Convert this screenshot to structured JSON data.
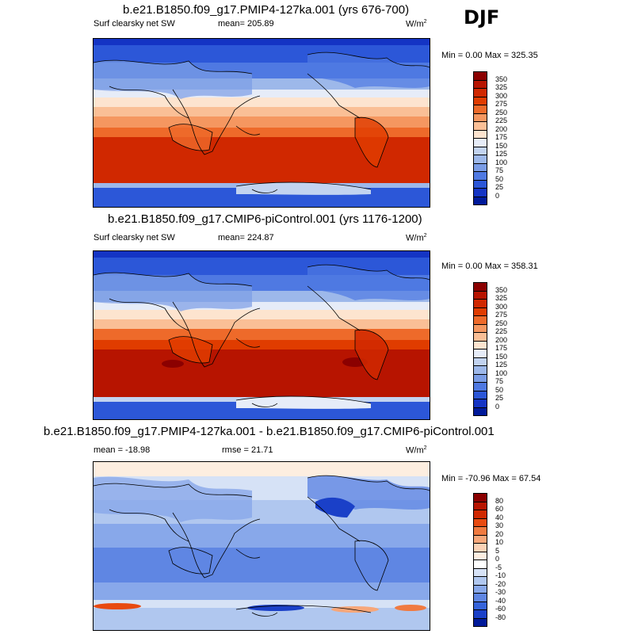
{
  "season": "DJF",
  "panels": [
    {
      "title": "b.e21.B1850.f09_g17.PMIP4-127ka.001 (yrs 676-700)",
      "left_label": "Surf clearsky net SW",
      "center_label": "mean= 205.89",
      "units": "W/m",
      "units_exp": "2",
      "minmax": "Min =   0.00 Max = 325.35",
      "scale": "abs",
      "pattern": "p1"
    },
    {
      "title": "b.e21.B1850.f09_g17.CMIP6-piControl.001 (yrs 1176-1200)",
      "left_label": "Surf clearsky net SW",
      "center_label": "mean= 224.87",
      "units": "W/m",
      "units_exp": "2",
      "minmax": "Min =   0.00 Max = 358.31",
      "scale": "abs",
      "pattern": "p2"
    },
    {
      "title": "b.e21.B1850.f09_g17.PMIP4-127ka.001 - b.e21.B1850.f09_g17.CMIP6-piControl.001",
      "left_label": "mean = -18.98",
      "center_label": "rmse =  21.71",
      "units": "W/m",
      "units_exp": "2",
      "minmax": "Min = -70.96 Max =  67.54",
      "scale": "diff",
      "pattern": "diff"
    }
  ],
  "colorbars": {
    "abs": {
      "labels": [
        "350",
        "325",
        "300",
        "275",
        "250",
        "225",
        "200",
        "175",
        "150",
        "125",
        "100",
        "75",
        "50",
        "25",
        "0"
      ],
      "colors": [
        "#8b0000",
        "#b71400",
        "#d02800",
        "#e03c00",
        "#ee6a2a",
        "#f59760",
        "#fabf96",
        "#fde4cf",
        "#e6ecf8",
        "#c2d3f0",
        "#9db8ea",
        "#7a9ce6",
        "#4f79e2",
        "#2c57d8",
        "#1434c4",
        "#001a9a"
      ]
    },
    "diff": {
      "labels": [
        "80",
        "60",
        "40",
        "30",
        "20",
        "10",
        "5",
        "0",
        "-5",
        "-10",
        "-20",
        "-30",
        "-40",
        "-60",
        "-80"
      ],
      "colors": [
        "#8b0000",
        "#b71400",
        "#d02800",
        "#e84a10",
        "#f07a40",
        "#f7a77a",
        "#fbd2b6",
        "#fdeee0",
        "#ffffff",
        "#d6e2f6",
        "#b0c7ef",
        "#88a8ea",
        "#5f86e3",
        "#3563da",
        "#1a40c8",
        "#001a9a"
      ]
    }
  }
}
